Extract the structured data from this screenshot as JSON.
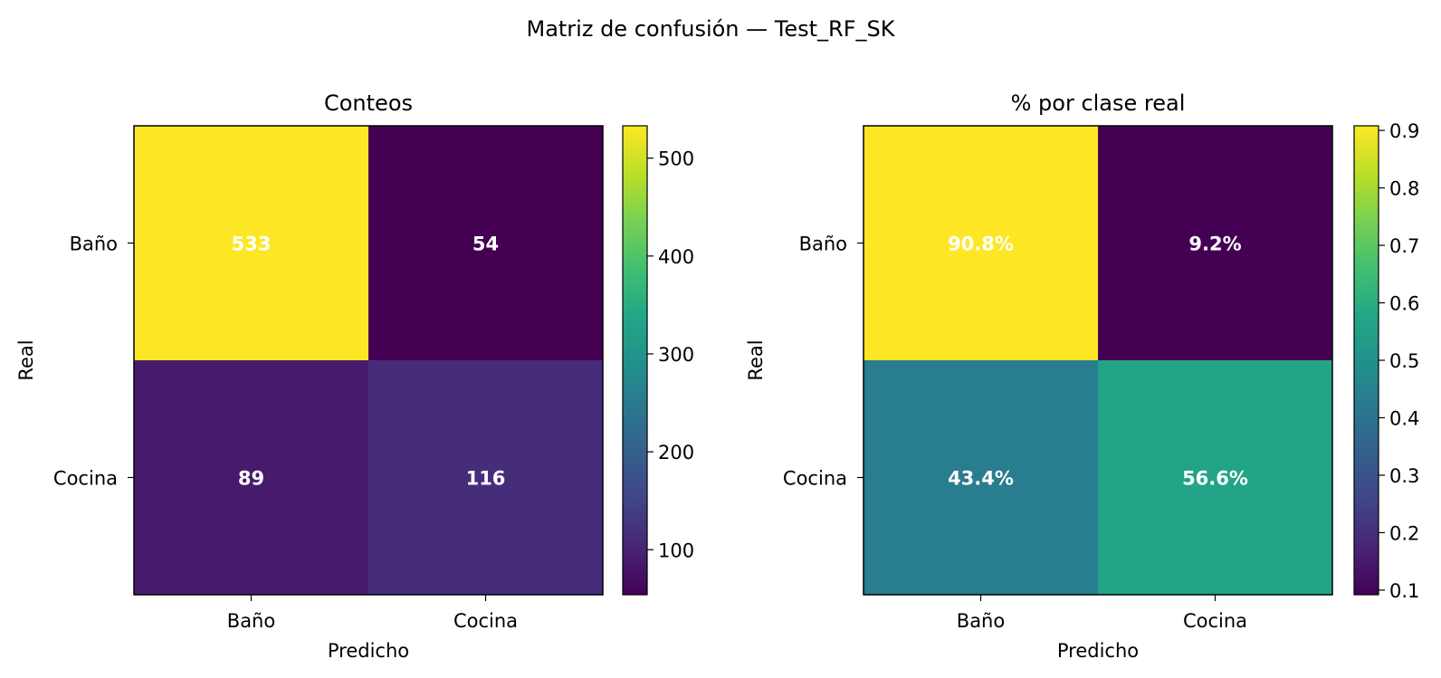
{
  "figure": {
    "title": "Matriz de confusión — Test_RF_SK"
  },
  "chart_data": [
    {
      "type": "heatmap",
      "title": "Conteos",
      "xlabel": "Predicho",
      "ylabel": "Real",
      "x_categories": [
        "Baño",
        "Cocina"
      ],
      "y_categories": [
        "Baño",
        "Cocina"
      ],
      "values": [
        [
          533,
          54
        ],
        [
          89,
          116
        ]
      ],
      "cell_labels": [
        [
          "533",
          "54"
        ],
        [
          "89",
          "116"
        ]
      ],
      "colormap": "viridis",
      "colorbar": {
        "range": [
          54,
          533
        ],
        "ticks": [
          100,
          200,
          300,
          400,
          500
        ],
        "tick_labels": [
          "100",
          "200",
          "300",
          "400",
          "500"
        ]
      },
      "grid": false
    },
    {
      "type": "heatmap",
      "title": "% por clase real",
      "xlabel": "Predicho",
      "ylabel": "Real",
      "x_categories": [
        "Baño",
        "Cocina"
      ],
      "y_categories": [
        "Baño",
        "Cocina"
      ],
      "values": [
        [
          0.908,
          0.092
        ],
        [
          0.434,
          0.566
        ]
      ],
      "cell_labels": [
        [
          "90.8%",
          "9.2%"
        ],
        [
          "43.4%",
          "56.6%"
        ]
      ],
      "colormap": "viridis",
      "colorbar": {
        "range": [
          0.092,
          0.908
        ],
        "ticks": [
          0.1,
          0.2,
          0.3,
          0.4,
          0.5,
          0.6,
          0.7,
          0.8,
          0.9
        ],
        "tick_labels": [
          "0.1",
          "0.2",
          "0.3",
          "0.4",
          "0.5",
          "0.6",
          "0.7",
          "0.8",
          "0.9"
        ]
      },
      "grid": false
    }
  ]
}
